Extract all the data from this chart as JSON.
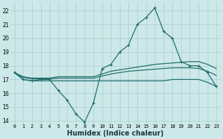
{
  "xlabel": "Humidex (Indice chaleur)",
  "bg_color": "#cce8e8",
  "grid_color": "#aacccc",
  "line_color": "#1e6b6b",
  "xlim": [
    -0.5,
    23.5
  ],
  "ylim": [
    13.8,
    22.6
  ],
  "yticks": [
    14,
    15,
    16,
    17,
    18,
    19,
    20,
    21,
    22
  ],
  "xticks": [
    0,
    1,
    2,
    3,
    4,
    5,
    6,
    7,
    8,
    9,
    10,
    11,
    12,
    13,
    14,
    15,
    16,
    17,
    18,
    19,
    20,
    21,
    22,
    23
  ],
  "main_line": {
    "x": [
      0,
      1,
      2,
      3,
      4,
      5,
      6,
      7,
      8,
      9,
      10,
      11,
      12,
      13,
      14,
      15,
      16,
      17,
      18,
      19,
      20,
      21,
      22,
      23
    ],
    "y": [
      17.5,
      17.0,
      16.9,
      17.0,
      17.0,
      16.2,
      15.5,
      14.5,
      13.9,
      15.3,
      17.8,
      18.1,
      19.0,
      19.5,
      21.0,
      21.5,
      22.2,
      20.5,
      20.0,
      18.3,
      18.0,
      18.0,
      17.5,
      16.5
    ]
  },
  "upper_bound_line": {
    "x": [
      0,
      1,
      2,
      3,
      4,
      5,
      6,
      7,
      8,
      9,
      10,
      11,
      12,
      13,
      14,
      15,
      16,
      17,
      18,
      19,
      20,
      21,
      22,
      23
    ],
    "y": [
      17.5,
      17.2,
      17.1,
      17.1,
      17.1,
      17.2,
      17.2,
      17.2,
      17.2,
      17.2,
      17.4,
      17.6,
      17.7,
      17.8,
      17.9,
      18.0,
      18.1,
      18.15,
      18.2,
      18.25,
      18.3,
      18.3,
      18.1,
      17.8
    ]
  },
  "mid_line": {
    "x": [
      0,
      1,
      2,
      3,
      4,
      5,
      6,
      7,
      8,
      9,
      10,
      11,
      12,
      13,
      14,
      15,
      16,
      17,
      18,
      19,
      20,
      21,
      22,
      23
    ],
    "y": [
      17.5,
      17.15,
      17.05,
      17.05,
      17.05,
      17.1,
      17.1,
      17.1,
      17.1,
      17.1,
      17.25,
      17.4,
      17.5,
      17.6,
      17.65,
      17.7,
      17.75,
      17.8,
      17.85,
      17.85,
      17.85,
      17.8,
      17.6,
      17.3
    ]
  },
  "lower_line": {
    "x": [
      0,
      1,
      2,
      3,
      4,
      5,
      6,
      7,
      8,
      9,
      10,
      11,
      12,
      13,
      14,
      15,
      16,
      17,
      18,
      19,
      20,
      21,
      22,
      23
    ],
    "y": [
      17.5,
      17.0,
      16.9,
      16.9,
      16.9,
      16.9,
      16.9,
      16.9,
      16.9,
      16.9,
      16.9,
      16.9,
      16.9,
      16.9,
      16.9,
      16.9,
      16.9,
      16.9,
      17.0,
      17.0,
      17.0,
      17.0,
      16.8,
      16.5
    ]
  }
}
